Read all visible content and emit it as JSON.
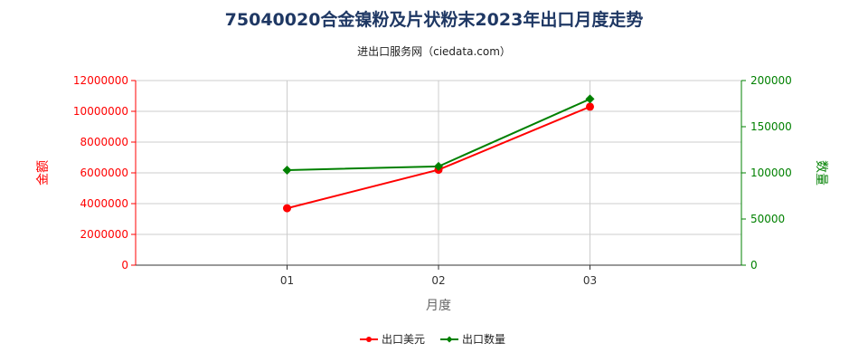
{
  "chart_data": {
    "type": "line",
    "title": "75040020合金镍粉及片状粉末2023年出口月度走势",
    "subtitle": "进出口服务网（ciedata.com）",
    "xlabel": "月度",
    "ylabel_left": "金额",
    "ylabel_right": "数量",
    "categories": [
      "01",
      "02",
      "03"
    ],
    "ylim_left": [
      0,
      12000000
    ],
    "ylim_right": [
      0,
      200000
    ],
    "yticks_left": [
      "0",
      "2000000",
      "4000000",
      "6000000",
      "8000000",
      "10000000",
      "12000000"
    ],
    "yticks_right": [
      "0",
      "50000",
      "100000",
      "150000",
      "200000"
    ],
    "grid": true,
    "legend_position": "bottom",
    "series": [
      {
        "name": "出口美元",
        "axis": "left",
        "color": "#ff0000",
        "marker": "circle",
        "values": [
          3700000,
          6200000,
          10300000
        ]
      },
      {
        "name": "出口数量",
        "axis": "right",
        "color": "#008000",
        "marker": "diamond",
        "values": [
          103000,
          107000,
          180000
        ]
      }
    ]
  }
}
